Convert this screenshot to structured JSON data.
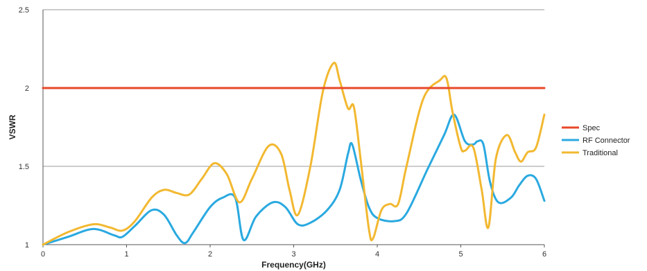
{
  "chart_data": {
    "type": "line",
    "title": "",
    "xlabel": "Frequency(GHz)",
    "ylabel": "VSWR",
    "xlim": [
      0,
      6
    ],
    "ylim": [
      1,
      2.5
    ],
    "x_ticks": [
      "0",
      "1",
      "2",
      "3",
      "4",
      "5",
      "6"
    ],
    "y_ticks": [
      "1",
      "1.5",
      "2",
      "2.5"
    ],
    "grid": "horizontal",
    "legend_position": "right",
    "series": [
      {
        "name": "Spec",
        "color": "#e8472a",
        "x": [
          0,
          6
        ],
        "values": [
          2,
          2
        ]
      },
      {
        "name": "RF Connector",
        "color": "#2aa9e0",
        "x": [
          0,
          0.3,
          0.6,
          0.85,
          0.95,
          1.1,
          1.3,
          1.45,
          1.6,
          1.7,
          1.8,
          2.0,
          2.15,
          2.3,
          2.4,
          2.55,
          2.75,
          2.9,
          3.05,
          3.2,
          3.4,
          3.55,
          3.65,
          3.7,
          3.8,
          3.9,
          4.0,
          4.2,
          4.35,
          4.6,
          4.8,
          4.92,
          5.05,
          5.15,
          5.2,
          5.27,
          5.35,
          5.45,
          5.6,
          5.7,
          5.8,
          5.9,
          6.0
        ],
        "values": [
          1.0,
          1.05,
          1.1,
          1.06,
          1.05,
          1.12,
          1.22,
          1.19,
          1.06,
          1.01,
          1.08,
          1.24,
          1.3,
          1.3,
          1.03,
          1.18,
          1.27,
          1.24,
          1.13,
          1.14,
          1.22,
          1.35,
          1.58,
          1.64,
          1.42,
          1.24,
          1.17,
          1.15,
          1.2,
          1.48,
          1.7,
          1.83,
          1.66,
          1.64,
          1.66,
          1.64,
          1.4,
          1.27,
          1.3,
          1.38,
          1.44,
          1.42,
          1.28
        ]
      },
      {
        "name": "Traditional",
        "color": "#f2b830",
        "x": [
          0,
          0.3,
          0.6,
          0.8,
          0.95,
          1.1,
          1.3,
          1.45,
          1.6,
          1.75,
          1.9,
          2.05,
          2.2,
          2.35,
          2.5,
          2.7,
          2.85,
          2.95,
          3.05,
          3.2,
          3.35,
          3.48,
          3.55,
          3.65,
          3.72,
          3.8,
          3.9,
          3.95,
          4.05,
          4.15,
          4.25,
          4.35,
          4.55,
          4.75,
          4.83,
          4.9,
          5.0,
          5.05,
          5.15,
          5.25,
          5.33,
          5.42,
          5.55,
          5.65,
          5.72,
          5.8,
          5.9,
          6.0
        ],
        "values": [
          1.0,
          1.08,
          1.13,
          1.11,
          1.09,
          1.15,
          1.3,
          1.35,
          1.33,
          1.32,
          1.42,
          1.52,
          1.45,
          1.27,
          1.42,
          1.63,
          1.58,
          1.35,
          1.19,
          1.5,
          1.98,
          2.16,
          2.05,
          1.87,
          1.88,
          1.55,
          1.1,
          1.04,
          1.22,
          1.26,
          1.26,
          1.5,
          1.93,
          2.05,
          2.06,
          1.85,
          1.62,
          1.6,
          1.62,
          1.35,
          1.11,
          1.55,
          1.7,
          1.59,
          1.53,
          1.59,
          1.62,
          1.83
        ]
      }
    ]
  }
}
